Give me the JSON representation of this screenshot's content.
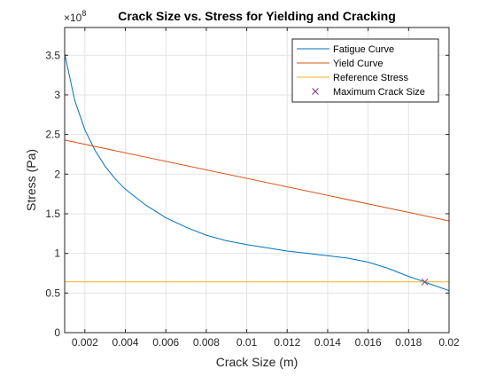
{
  "chart_data": {
    "type": "line",
    "title": "Crack Size vs. Stress for Yielding and Cracking",
    "xlabel": "Crack Size (m)",
    "ylabel": "Stress (Pa)",
    "y_exponent_label": "×10",
    "y_exponent_power": "8",
    "xlim": [
      0.001,
      0.02
    ],
    "ylim": [
      0,
      385000000
    ],
    "x_ticks": [
      0.002,
      0.004,
      0.006,
      0.008,
      0.01,
      0.012,
      0.014,
      0.016,
      0.018,
      0.02
    ],
    "x_tick_labels": [
      "0.002",
      "0.004",
      "0.006",
      "0.008",
      "0.01",
      "0.012",
      "0.014",
      "0.016",
      "0.018",
      "0.02"
    ],
    "y_ticks": [
      0,
      50000000,
      100000000,
      150000000,
      200000000,
      250000000,
      300000000,
      350000000
    ],
    "y_tick_labels": [
      "0",
      "0.5",
      "1",
      "1.5",
      "2",
      "2.5",
      "3",
      "3.5"
    ],
    "grid": true,
    "legend_position": "top-right",
    "series": [
      {
        "name": "Fatigue Curve",
        "color": "#0072BD",
        "x": [
          0.001,
          0.0015,
          0.002,
          0.0025,
          0.003,
          0.0035,
          0.004,
          0.005,
          0.006,
          0.007,
          0.008,
          0.009,
          0.01,
          0.011,
          0.012,
          0.013,
          0.014,
          0.015,
          0.016,
          0.017,
          0.018,
          0.0188,
          0.019,
          0.02
        ],
        "y": [
          352000000,
          293000000,
          256000000,
          230000000,
          210000000,
          194000000,
          181000000,
          161000000,
          145000000,
          133000000,
          123000000,
          116000000,
          111000000,
          107000000,
          103000000,
          100000000,
          97000000,
          94000000,
          89000000,
          81000000,
          71000000,
          64000000,
          62000000,
          53000000
        ]
      },
      {
        "name": "Yield Curve",
        "color": "#D95319",
        "x": [
          0.001,
          0.02
        ],
        "y": [
          243000000,
          141000000
        ]
      },
      {
        "name": "Reference Stress",
        "color": "#EDB120",
        "x": [
          0.001,
          0.02
        ],
        "y": [
          64000000,
          64000000
        ]
      },
      {
        "name": "Maximum Crack Size",
        "color": "#7E2F8E",
        "marker": "x",
        "x": [
          0.0188
        ],
        "y": [
          64000000
        ]
      }
    ]
  }
}
